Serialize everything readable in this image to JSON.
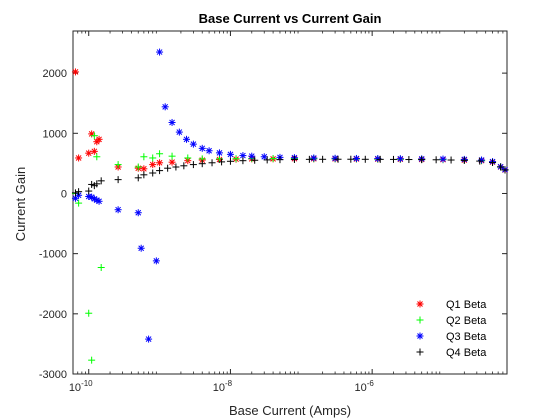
{
  "chart_data": {
    "type": "scatter",
    "title": "Base Current vs Current Gain",
    "xlabel": "Base Current (Amps)",
    "ylabel": "Current Gain",
    "xscale": "log",
    "xlim": [
      6e-11,
      8e-05
    ],
    "ylim": [
      -3000,
      2700
    ],
    "x_ticks": [
      1e-10,
      1e-08,
      1e-06
    ],
    "x_tick_labels": [
      {
        "base": "10",
        "exp": "-10"
      },
      {
        "base": "10",
        "exp": "-8"
      },
      {
        "base": "10",
        "exp": "-6"
      }
    ],
    "y_ticks": [
      -3000,
      -2000,
      -1000,
      0,
      1000,
      2000
    ],
    "y_tick_labels": [
      "-3000",
      "-2000",
      "-1000",
      "0",
      "1000",
      "2000"
    ],
    "grid": false,
    "box": true,
    "legend_position": "bottom-right",
    "series": [
      {
        "name": "Q1 Beta",
        "marker": "asterisk",
        "color": "#ff0000",
        "points": [
          [
            6.5e-11,
            2020
          ],
          [
            7.2e-11,
            590
          ],
          [
            1e-10,
            670
          ],
          [
            1.1e-10,
            990
          ],
          [
            1.2e-10,
            700
          ],
          [
            1.3e-10,
            860
          ],
          [
            1.4e-10,
            900
          ],
          [
            2.6e-10,
            440
          ],
          [
            5e-10,
            420
          ],
          [
            6e-10,
            410
          ],
          [
            8e-10,
            480
          ],
          [
            1e-09,
            510
          ],
          [
            1.5e-09,
            520
          ],
          [
            2.5e-09,
            545
          ],
          [
            4e-09,
            555
          ],
          [
            7e-09,
            565
          ],
          [
            1.2e-08,
            570
          ],
          [
            2e-08,
            575
          ],
          [
            4e-08,
            575
          ],
          [
            8e-08,
            578
          ],
          [
            1.5e-07,
            576
          ],
          [
            3e-07,
            575
          ],
          [
            6e-07,
            572
          ],
          [
            1.2e-06,
            570
          ],
          [
            2.5e-06,
            568
          ],
          [
            5e-06,
            565
          ],
          [
            1e-05,
            562
          ],
          [
            2e-05,
            555
          ],
          [
            3.5e-05,
            545
          ],
          [
            5e-05,
            520
          ],
          [
            6.5e-05,
            440
          ],
          [
            7.5e-05,
            390
          ]
        ]
      },
      {
        "name": "Q2 Beta",
        "marker": "plus",
        "color": "#00ff00",
        "points": [
          [
            6.5e-11,
            0
          ],
          [
            7.2e-11,
            -160
          ],
          [
            1e-10,
            -1990
          ],
          [
            1.1e-10,
            -2770
          ],
          [
            1.2e-10,
            960
          ],
          [
            1.3e-10,
            610
          ],
          [
            1.5e-10,
            -1230
          ],
          [
            2.6e-10,
            480
          ],
          [
            5e-10,
            440
          ],
          [
            6e-10,
            610
          ],
          [
            8e-10,
            590
          ],
          [
            1e-09,
            660
          ],
          [
            1.5e-09,
            620
          ],
          [
            2.5e-09,
            590
          ],
          [
            4e-09,
            575
          ],
          [
            7e-09,
            575
          ],
          [
            1.2e-08,
            578
          ],
          [
            2e-08,
            580
          ],
          [
            4e-08,
            580
          ],
          [
            8e-08,
            580
          ],
          [
            1.5e-07,
            578
          ],
          [
            3e-07,
            577
          ],
          [
            6e-07,
            575
          ],
          [
            1.2e-06,
            572
          ],
          [
            2.5e-06,
            570
          ],
          [
            5e-06,
            567
          ],
          [
            1e-05,
            563
          ],
          [
            2e-05,
            556
          ],
          [
            3.5e-05,
            546
          ],
          [
            5e-05,
            522
          ],
          [
            6.5e-05,
            442
          ],
          [
            7.5e-05,
            392
          ]
        ]
      },
      {
        "name": "Q3 Beta",
        "marker": "asterisk",
        "color": "#0000ff",
        "points": [
          [
            6.5e-11,
            -80
          ],
          [
            7.2e-11,
            -30
          ],
          [
            1e-10,
            -50
          ],
          [
            1.1e-10,
            -60
          ],
          [
            1.2e-10,
            -90
          ],
          [
            1.3e-10,
            -110
          ],
          [
            1.4e-10,
            -130
          ],
          [
            2.6e-10,
            -270
          ],
          [
            5e-10,
            -320
          ],
          [
            5.5e-10,
            -910
          ],
          [
            7e-10,
            -2420
          ],
          [
            9e-10,
            -1120
          ],
          [
            1e-09,
            2350
          ],
          [
            1.2e-09,
            1440
          ],
          [
            1.5e-09,
            1180
          ],
          [
            1.9e-09,
            1020
          ],
          [
            2.4e-09,
            900
          ],
          [
            3e-09,
            820
          ],
          [
            4e-09,
            750
          ],
          [
            5e-09,
            710
          ],
          [
            7e-09,
            675
          ],
          [
            1e-08,
            650
          ],
          [
            1.5e-08,
            630
          ],
          [
            2e-08,
            620
          ],
          [
            3e-08,
            610
          ],
          [
            5e-08,
            600
          ],
          [
            8e-08,
            595
          ],
          [
            1.5e-07,
            590
          ],
          [
            3e-07,
            585
          ],
          [
            6e-07,
            582
          ],
          [
            1.2e-06,
            580
          ],
          [
            2.5e-06,
            578
          ],
          [
            5e-06,
            575
          ],
          [
            1e-05,
            572
          ],
          [
            2e-05,
            566
          ],
          [
            3.5e-05,
            556
          ],
          [
            5e-05,
            530
          ],
          [
            6.5e-05,
            445
          ],
          [
            7.5e-05,
            395
          ]
        ]
      },
      {
        "name": "Q4 Beta",
        "marker": "plus",
        "color": "#000000",
        "points": [
          [
            6.5e-11,
            10
          ],
          [
            7.2e-11,
            30
          ],
          [
            1e-10,
            40
          ],
          [
            1.1e-10,
            150
          ],
          [
            1.2e-10,
            130
          ],
          [
            1.3e-10,
            160
          ],
          [
            1.5e-10,
            210
          ],
          [
            2.6e-10,
            230
          ],
          [
            5e-10,
            260
          ],
          [
            6e-10,
            310
          ],
          [
            8e-10,
            340
          ],
          [
            1e-09,
            380
          ],
          [
            1.3e-09,
            420
          ],
          [
            1.7e-09,
            440
          ],
          [
            2.2e-09,
            460
          ],
          [
            3e-09,
            480
          ],
          [
            4e-09,
            495
          ],
          [
            5.5e-09,
            510
          ],
          [
            7.5e-09,
            525
          ],
          [
            1e-08,
            535
          ],
          [
            1.5e-08,
            545
          ],
          [
            2.2e-08,
            552
          ],
          [
            3.3e-08,
            558
          ],
          [
            5e-08,
            562
          ],
          [
            8e-08,
            565
          ],
          [
            1.3e-07,
            567
          ],
          [
            2e-07,
            568
          ],
          [
            3.3e-07,
            569
          ],
          [
            5e-07,
            569
          ],
          [
            8e-07,
            568
          ],
          [
            1.3e-06,
            567
          ],
          [
            2e-06,
            566
          ],
          [
            3.3e-06,
            564
          ],
          [
            5e-06,
            562
          ],
          [
            8e-06,
            560
          ],
          [
            1.3e-05,
            556
          ],
          [
            2e-05,
            550
          ],
          [
            3.3e-05,
            538
          ],
          [
            5e-05,
            515
          ],
          [
            6.5e-05,
            440
          ],
          [
            7.5e-05,
            390
          ]
        ]
      }
    ]
  }
}
